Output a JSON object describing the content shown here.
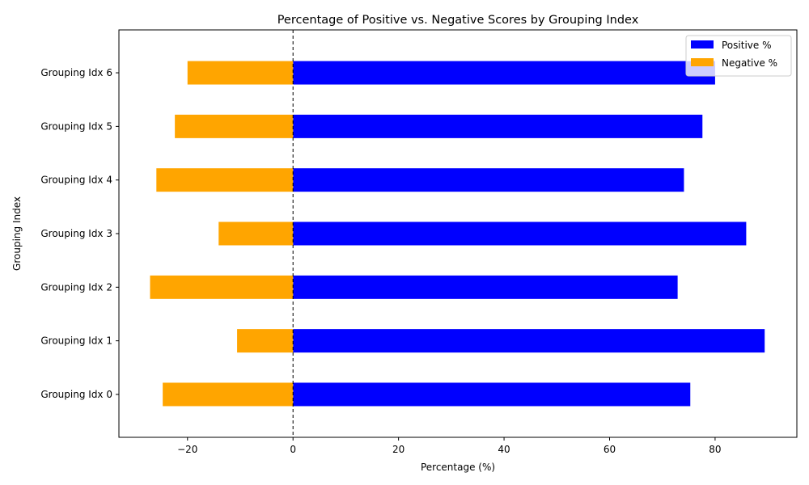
{
  "chart_data": {
    "type": "bar",
    "orientation": "horizontal",
    "title": "Percentage of Positive vs. Negative Scores by Grouping Index",
    "xlabel": "Percentage (%)",
    "ylabel": "Grouping Index",
    "xlim": [
      -33,
      95.5
    ],
    "xticks": [
      -20,
      0,
      20,
      40,
      60,
      80
    ],
    "categories": [
      "Grouping Idx 0",
      "Grouping Idx 1",
      "Grouping Idx 2",
      "Grouping Idx 3",
      "Grouping Idx 4",
      "Grouping Idx 5",
      "Grouping Idx 6"
    ],
    "series": [
      {
        "name": "Positive %",
        "color": "#0000ff",
        "values": [
          75.3,
          89.4,
          72.9,
          85.9,
          74.1,
          77.6,
          80.0
        ]
      },
      {
        "name": "Negative %",
        "color": "#ffa500",
        "values": [
          -24.7,
          -10.6,
          -27.1,
          -14.1,
          -25.9,
          -22.4,
          -20.0
        ]
      }
    ],
    "zero_line": "dashed",
    "grid": false,
    "legend_position": "top-right"
  }
}
